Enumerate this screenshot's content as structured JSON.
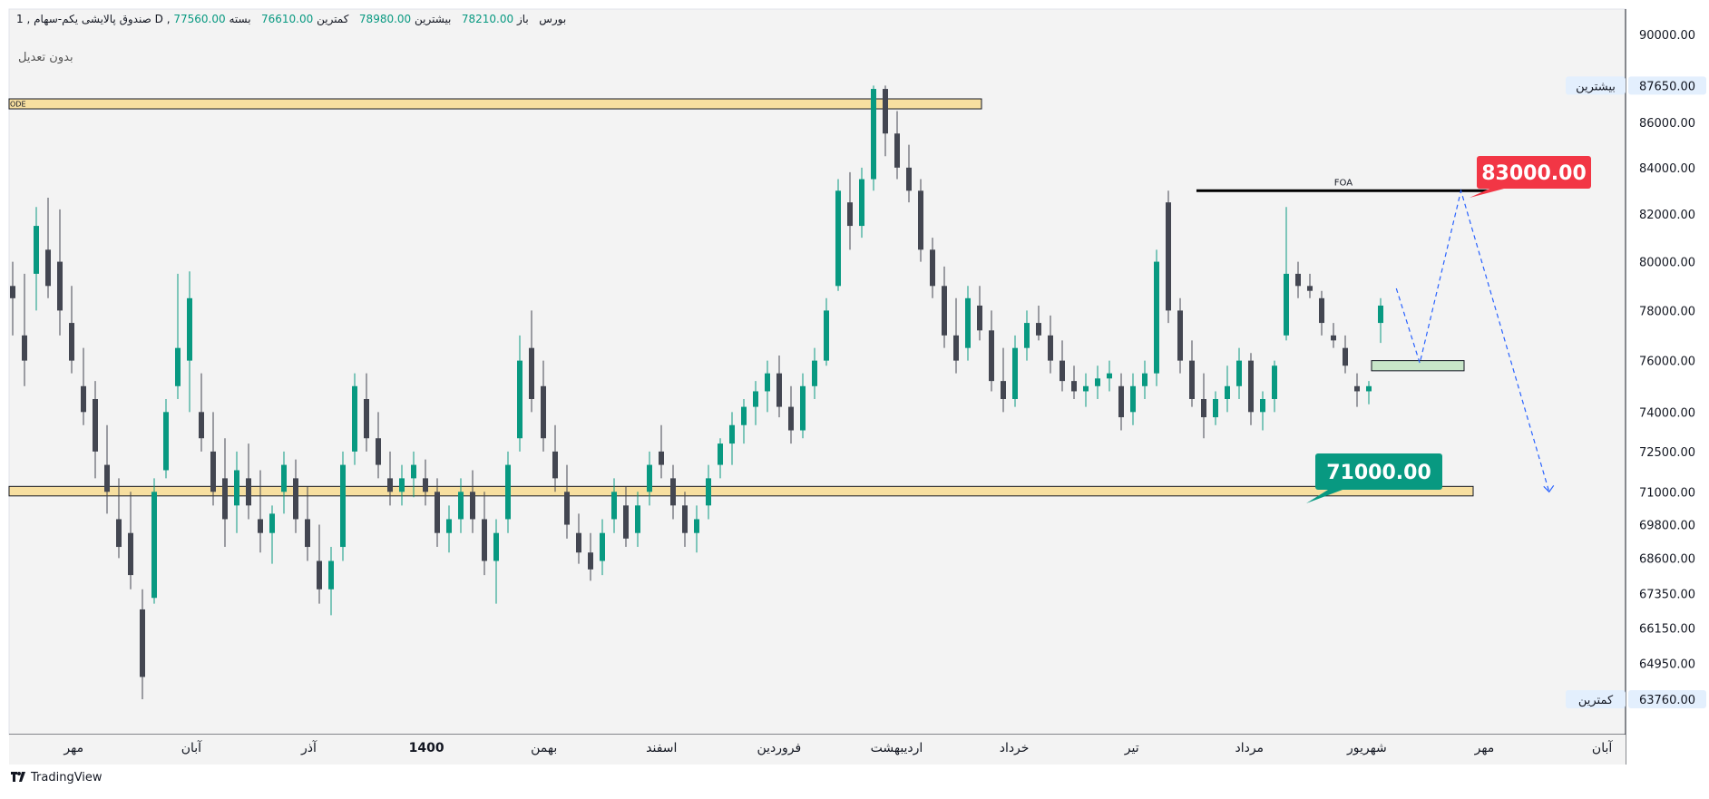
{
  "header": {
    "interval": "1",
    "symbol": "صندوق پالایشی یکم-سهام",
    "exchange": "بورس",
    "currency_flag": "D",
    "open_label": "باز",
    "open_value": "78210.00",
    "high_label": "بیشترین",
    "high_value": "78980.00",
    "low_label": "کمترین",
    "low_value": "76610.00",
    "close_label": "بسته",
    "close_value": "77560.00"
  },
  "adjustment_label": "بدون تعدیل",
  "branding": {
    "name": "TradingView",
    "logo": "tradingview-logo-icon"
  },
  "colors": {
    "up": "#089981",
    "down": "#434651",
    "zone_fill": "#f7dfa0",
    "target_red": "#f23645",
    "target_green": "#089981",
    "demand_zone": "#c8e6c9",
    "projection": "#2962ff",
    "background": "#f3f3f3"
  },
  "chart_data": {
    "type": "candlestick",
    "y_axis_ticks": [
      "90000.00",
      "86000.00",
      "84000.00",
      "82000.00",
      "80000.00",
      "78000.00",
      "76000.00",
      "74000.00",
      "72500.00",
      "71000.00",
      "69800.00",
      "68600.00",
      "67350.00",
      "66150.00",
      "64950.00",
      "63760.00"
    ],
    "y_axis_scale": "log",
    "ylim": [
      62600,
      91200
    ],
    "x_axis_labels": [
      "مهر",
      "آبان",
      "آذر",
      "1400",
      "بهمن",
      "اسفند",
      "فروردین",
      "اردیبهشت",
      "خرداد",
      "تیر",
      "مرداد",
      "شهریور",
      "مهر",
      "آبان"
    ],
    "x_label_positions": [
      0.5,
      2.5,
      4.5,
      6.5,
      8.5,
      10.5,
      12.5,
      14.5,
      16.5,
      18.5,
      20.5,
      22.5,
      24.5,
      26.5
    ],
    "x_range": [
      -0.6,
      26.9
    ],
    "price_badges": [
      {
        "label": "بیشترین",
        "value": "87650.00"
      },
      {
        "label": "کمترین",
        "value": "63760.00"
      }
    ],
    "resistance_zone": {
      "text": "ODE",
      "from": 86600,
      "to": 87050
    },
    "support_zone": {
      "from": 70850,
      "to": 71200
    },
    "foa_line": {
      "label": "FOA",
      "price": 83000,
      "x_start": 19.6,
      "x_end": 24.6
    },
    "demand_zone": {
      "from": 75600,
      "to": 76000
    },
    "targets": [
      {
        "value": "83000.00",
        "color": "red"
      },
      {
        "value": "71000.00",
        "color": "green"
      }
    ],
    "projection_path": [
      [
        23.0,
        78900
      ],
      [
        23.4,
        75900
      ],
      [
        24.1,
        83000
      ],
      [
        25.6,
        71000
      ]
    ],
    "candles": [
      {
        "o": 79000,
        "h": 80000,
        "l": 77000,
        "c": 78500
      },
      {
        "o": 77000,
        "h": 79500,
        "l": 75000,
        "c": 76000
      },
      {
        "o": 79500,
        "h": 82300,
        "l": 78000,
        "c": 81500
      },
      {
        "o": 80500,
        "h": 82700,
        "l": 78500,
        "c": 79000
      },
      {
        "o": 80000,
        "h": 82200,
        "l": 77000,
        "c": 78000
      },
      {
        "o": 77500,
        "h": 79000,
        "l": 75500,
        "c": 76000
      },
      {
        "o": 75000,
        "h": 76500,
        "l": 73500,
        "c": 74000
      },
      {
        "o": 74500,
        "h": 75200,
        "l": 71500,
        "c": 72500
      },
      {
        "o": 72000,
        "h": 73500,
        "l": 70200,
        "c": 71000
      },
      {
        "o": 70000,
        "h": 71500,
        "l": 68600,
        "c": 69000
      },
      {
        "o": 69500,
        "h": 71000,
        "l": 67500,
        "c": 68000
      },
      {
        "o": 66800,
        "h": 67500,
        "l": 63760,
        "c": 64500
      },
      {
        "o": 67200,
        "h": 71500,
        "l": 67000,
        "c": 71000
      },
      {
        "o": 71800,
        "h": 74500,
        "l": 71500,
        "c": 74000
      },
      {
        "o": 75000,
        "h": 79500,
        "l": 74500,
        "c": 76500
      },
      {
        "o": 76000,
        "h": 79600,
        "l": 74000,
        "c": 78500
      },
      {
        "o": 74000,
        "h": 75500,
        "l": 72500,
        "c": 73000
      },
      {
        "o": 72500,
        "h": 74000,
        "l": 70500,
        "c": 71000
      },
      {
        "o": 71500,
        "h": 73000,
        "l": 69000,
        "c": 70000
      },
      {
        "o": 70500,
        "h": 72500,
        "l": 69500,
        "c": 71800
      },
      {
        "o": 71500,
        "h": 72800,
        "l": 70000,
        "c": 70500
      },
      {
        "o": 70000,
        "h": 71800,
        "l": 68800,
        "c": 69500
      },
      {
        "o": 69500,
        "h": 70500,
        "l": 68400,
        "c": 70200
      },
      {
        "o": 71000,
        "h": 72500,
        "l": 70200,
        "c": 72000
      },
      {
        "o": 71500,
        "h": 72200,
        "l": 69500,
        "c": 70000
      },
      {
        "o": 70000,
        "h": 71200,
        "l": 68500,
        "c": 69000
      },
      {
        "o": 68500,
        "h": 69800,
        "l": 67000,
        "c": 67500
      },
      {
        "o": 67500,
        "h": 69000,
        "l": 66600,
        "c": 68500
      },
      {
        "o": 69000,
        "h": 72500,
        "l": 68500,
        "c": 72000
      },
      {
        "o": 72500,
        "h": 75500,
        "l": 72000,
        "c": 75000
      },
      {
        "o": 74500,
        "h": 75500,
        "l": 72500,
        "c": 73000
      },
      {
        "o": 73000,
        "h": 74000,
        "l": 71500,
        "c": 72000
      },
      {
        "o": 71500,
        "h": 72500,
        "l": 70500,
        "c": 71000
      },
      {
        "o": 71000,
        "h": 72000,
        "l": 70500,
        "c": 71500
      },
      {
        "o": 71500,
        "h": 72500,
        "l": 70800,
        "c": 72000
      },
      {
        "o": 71500,
        "h": 72200,
        "l": 70500,
        "c": 71000
      },
      {
        "o": 71000,
        "h": 71500,
        "l": 69000,
        "c": 69500
      },
      {
        "o": 69500,
        "h": 70500,
        "l": 68800,
        "c": 70000
      },
      {
        "o": 70000,
        "h": 71500,
        "l": 69500,
        "c": 71000
      },
      {
        "o": 71000,
        "h": 71800,
        "l": 69500,
        "c": 70000
      },
      {
        "o": 70000,
        "h": 71000,
        "l": 68000,
        "c": 68500
      },
      {
        "o": 68500,
        "h": 70000,
        "l": 67000,
        "c": 69500
      },
      {
        "o": 70000,
        "h": 72500,
        "l": 69500,
        "c": 72000
      },
      {
        "o": 73000,
        "h": 77000,
        "l": 72500,
        "c": 76000
      },
      {
        "o": 76500,
        "h": 78000,
        "l": 74000,
        "c": 74500
      },
      {
        "o": 75000,
        "h": 76000,
        "l": 72500,
        "c": 73000
      },
      {
        "o": 72500,
        "h": 73500,
        "l": 71000,
        "c": 71500
      },
      {
        "o": 71000,
        "h": 72000,
        "l": 69300,
        "c": 69800
      },
      {
        "o": 69500,
        "h": 70200,
        "l": 68400,
        "c": 68800
      },
      {
        "o": 68800,
        "h": 69500,
        "l": 67800,
        "c": 68200
      },
      {
        "o": 68500,
        "h": 70000,
        "l": 68000,
        "c": 69500
      },
      {
        "o": 70000,
        "h": 71500,
        "l": 69500,
        "c": 71000
      },
      {
        "o": 70500,
        "h": 71200,
        "l": 69000,
        "c": 69300
      },
      {
        "o": 69500,
        "h": 71000,
        "l": 69000,
        "c": 70500
      },
      {
        "o": 71000,
        "h": 72500,
        "l": 70500,
        "c": 72000
      },
      {
        "o": 72500,
        "h": 73500,
        "l": 71500,
        "c": 72000
      },
      {
        "o": 71500,
        "h": 72000,
        "l": 70000,
        "c": 70500
      },
      {
        "o": 70500,
        "h": 71000,
        "l": 69000,
        "c": 69500
      },
      {
        "o": 69500,
        "h": 70500,
        "l": 68800,
        "c": 70000
      },
      {
        "o": 70500,
        "h": 72000,
        "l": 70000,
        "c": 71500
      },
      {
        "o": 72000,
        "h": 73000,
        "l": 71500,
        "c": 72800
      },
      {
        "o": 72800,
        "h": 74000,
        "l": 72000,
        "c": 73500
      },
      {
        "o": 73500,
        "h": 74500,
        "l": 72800,
        "c": 74200
      },
      {
        "o": 74200,
        "h": 75200,
        "l": 73500,
        "c": 74800
      },
      {
        "o": 74800,
        "h": 76000,
        "l": 74000,
        "c": 75500
      },
      {
        "o": 75500,
        "h": 76200,
        "l": 73800,
        "c": 74200
      },
      {
        "o": 74200,
        "h": 75000,
        "l": 72800,
        "c": 73300
      },
      {
        "o": 73300,
        "h": 75500,
        "l": 73000,
        "c": 75000
      },
      {
        "o": 75000,
        "h": 76500,
        "l": 74500,
        "c": 76000
      },
      {
        "o": 76000,
        "h": 78500,
        "l": 75800,
        "c": 78000
      },
      {
        "o": 79000,
        "h": 83500,
        "l": 78800,
        "c": 83000
      },
      {
        "o": 82500,
        "h": 83800,
        "l": 80500,
        "c": 81500
      },
      {
        "o": 81500,
        "h": 84000,
        "l": 81000,
        "c": 83500
      },
      {
        "o": 83500,
        "h": 87650,
        "l": 83000,
        "c": 87500
      },
      {
        "o": 87500,
        "h": 87650,
        "l": 84500,
        "c": 85500
      },
      {
        "o": 85500,
        "h": 86500,
        "l": 83500,
        "c": 84000
      },
      {
        "o": 84000,
        "h": 85000,
        "l": 82500,
        "c": 83000
      },
      {
        "o": 83000,
        "h": 83500,
        "l": 80000,
        "c": 80500
      },
      {
        "o": 80500,
        "h": 81000,
        "l": 78500,
        "c": 79000
      },
      {
        "o": 79000,
        "h": 79800,
        "l": 76500,
        "c": 77000
      },
      {
        "o": 77000,
        "h": 78500,
        "l": 75500,
        "c": 76000
      },
      {
        "o": 76500,
        "h": 79000,
        "l": 76000,
        "c": 78500
      },
      {
        "o": 78200,
        "h": 79000,
        "l": 76800,
        "c": 77200
      },
      {
        "o": 77200,
        "h": 78000,
        "l": 74800,
        "c": 75200
      },
      {
        "o": 75200,
        "h": 76500,
        "l": 74000,
        "c": 74500
      },
      {
        "o": 74500,
        "h": 77000,
        "l": 74200,
        "c": 76500
      },
      {
        "o": 76500,
        "h": 78000,
        "l": 76000,
        "c": 77500
      },
      {
        "o": 77500,
        "h": 78200,
        "l": 76800,
        "c": 77000
      },
      {
        "o": 77000,
        "h": 77800,
        "l": 75500,
        "c": 76000
      },
      {
        "o": 76000,
        "h": 76800,
        "l": 74800,
        "c": 75200
      },
      {
        "o": 75200,
        "h": 75800,
        "l": 74500,
        "c": 74800
      },
      {
        "o": 74800,
        "h": 75500,
        "l": 74200,
        "c": 75000
      },
      {
        "o": 75000,
        "h": 75800,
        "l": 74500,
        "c": 75300
      },
      {
        "o": 75300,
        "h": 76000,
        "l": 74800,
        "c": 75500
      },
      {
        "o": 75000,
        "h": 75500,
        "l": 73300,
        "c": 73800
      },
      {
        "o": 74000,
        "h": 75500,
        "l": 73500,
        "c": 75000
      },
      {
        "o": 75000,
        "h": 76000,
        "l": 74500,
        "c": 75500
      },
      {
        "o": 75500,
        "h": 80500,
        "l": 75000,
        "c": 80000
      },
      {
        "o": 82500,
        "h": 83000,
        "l": 77500,
        "c": 78000
      },
      {
        "o": 78000,
        "h": 78500,
        "l": 75500,
        "c": 76000
      },
      {
        "o": 76000,
        "h": 76800,
        "l": 74200,
        "c": 74500
      },
      {
        "o": 74500,
        "h": 75500,
        "l": 73000,
        "c": 73800
      },
      {
        "o": 73800,
        "h": 74800,
        "l": 73500,
        "c": 74500
      },
      {
        "o": 74500,
        "h": 75800,
        "l": 74000,
        "c": 75000
      },
      {
        "o": 75000,
        "h": 76500,
        "l": 74500,
        "c": 76000
      },
      {
        "o": 76000,
        "h": 76300,
        "l": 73500,
        "c": 74000
      },
      {
        "o": 74000,
        "h": 74800,
        "l": 73300,
        "c": 74500
      },
      {
        "o": 74500,
        "h": 76000,
        "l": 74000,
        "c": 75800
      },
      {
        "o": 77000,
        "h": 82300,
        "l": 76800,
        "c": 79500
      },
      {
        "o": 79500,
        "h": 80000,
        "l": 78500,
        "c": 79000
      },
      {
        "o": 79000,
        "h": 79500,
        "l": 78500,
        "c": 78800
      },
      {
        "o": 78500,
        "h": 78800,
        "l": 77000,
        "c": 77500
      },
      {
        "o": 77000,
        "h": 77500,
        "l": 76500,
        "c": 76800
      },
      {
        "o": 76500,
        "h": 77000,
        "l": 75500,
        "c": 75800
      },
      {
        "o": 75000,
        "h": 75500,
        "l": 74200,
        "c": 74800
      },
      {
        "o": 74800,
        "h": 75200,
        "l": 74300,
        "c": 75000
      },
      {
        "o": 77500,
        "h": 78500,
        "l": 76700,
        "c": 78200
      }
    ]
  }
}
